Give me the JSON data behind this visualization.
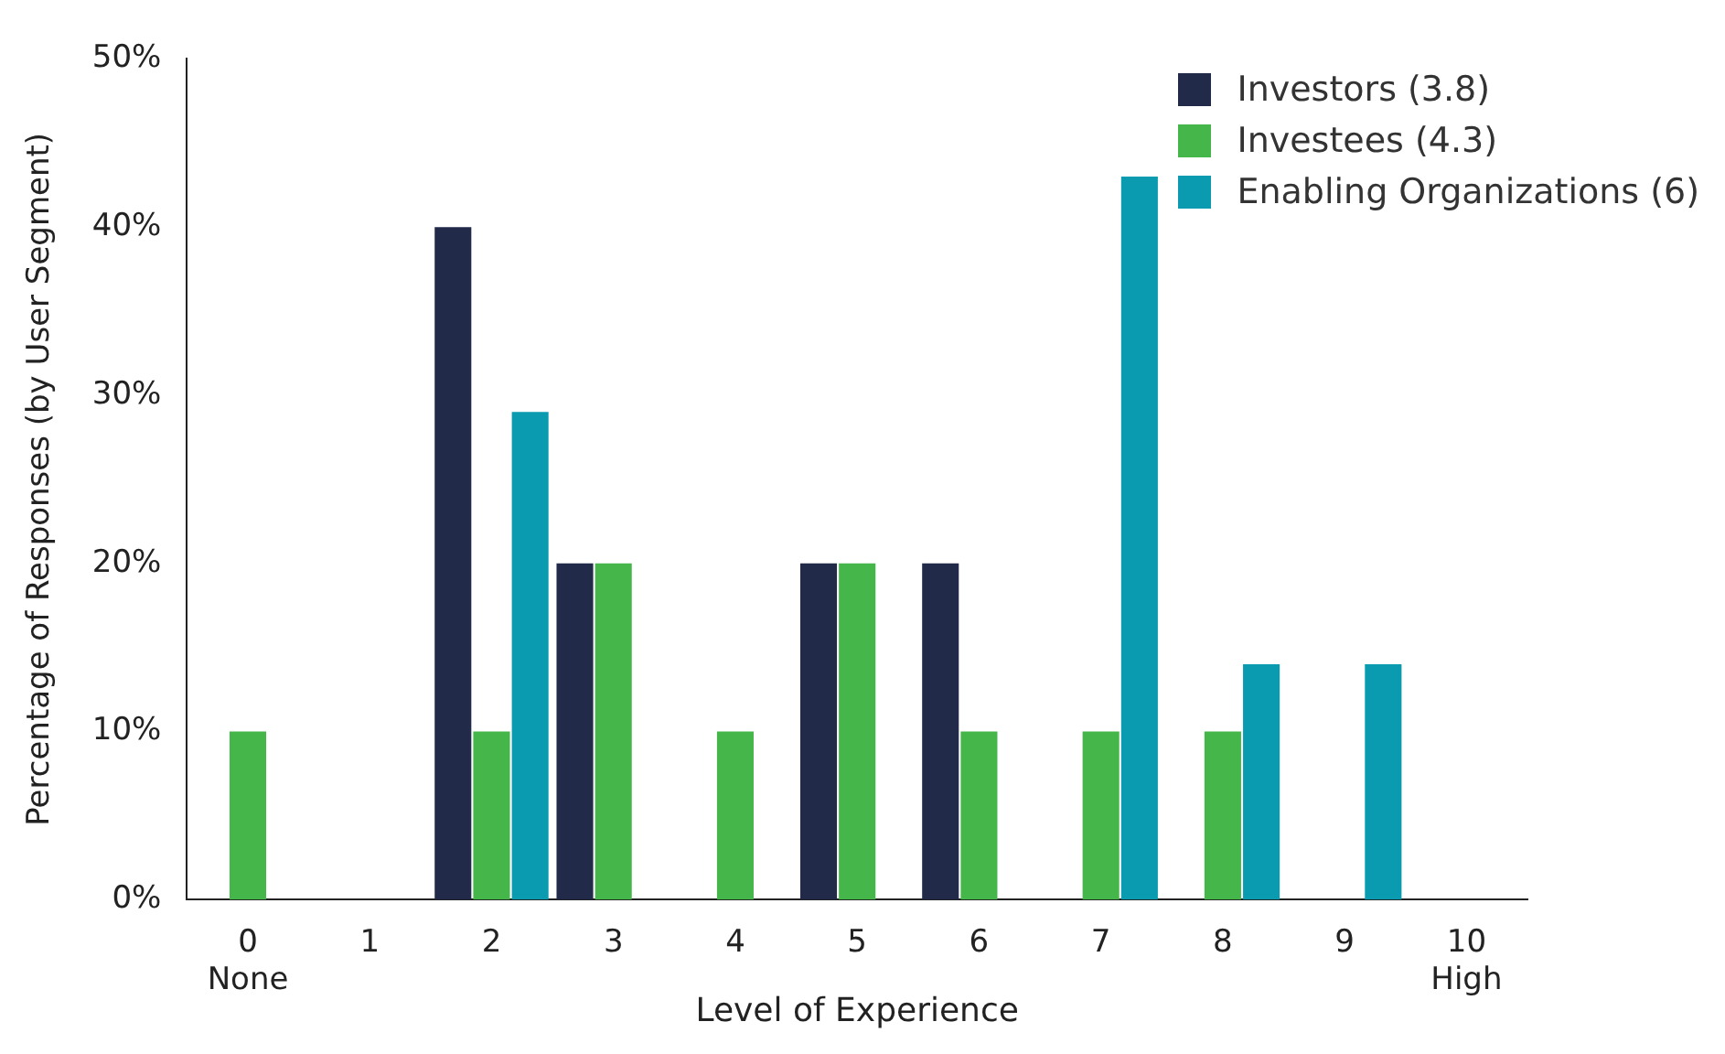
{
  "chart_data": {
    "type": "bar",
    "xlabel": "Level of Experience",
    "ylabel": "Percentage of Responses (by User Segment)",
    "categories": [
      "0\nNone",
      "1",
      "2",
      "3",
      "4",
      "5",
      "6",
      "7",
      "8",
      "9",
      "10\nHigh"
    ],
    "series": [
      {
        "name": "Investors (3.8)",
        "color": "#222a49",
        "values": [
          0,
          0,
          40,
          20,
          0,
          20,
          20,
          0,
          0,
          0,
          0
        ]
      },
      {
        "name": "Investees (4.3)",
        "color": "#45b649",
        "values": [
          10,
          0,
          10,
          20,
          10,
          20,
          10,
          10,
          10,
          0,
          0
        ]
      },
      {
        "name": "Enabling Organizations (6)",
        "color": "#0a9bb0",
        "values": [
          0,
          0,
          29,
          0,
          0,
          0,
          0,
          43,
          14,
          14,
          0
        ]
      }
    ],
    "ylim": [
      0,
      50
    ],
    "yticks": [
      {
        "value": 0,
        "label": "0%"
      },
      {
        "value": 10,
        "label": "10%"
      },
      {
        "value": 20,
        "label": "20%"
      },
      {
        "value": 30,
        "label": "30%"
      },
      {
        "value": 40,
        "label": "40%"
      },
      {
        "value": 50,
        "label": "50%"
      }
    ],
    "grid": false,
    "legend": "top right"
  }
}
